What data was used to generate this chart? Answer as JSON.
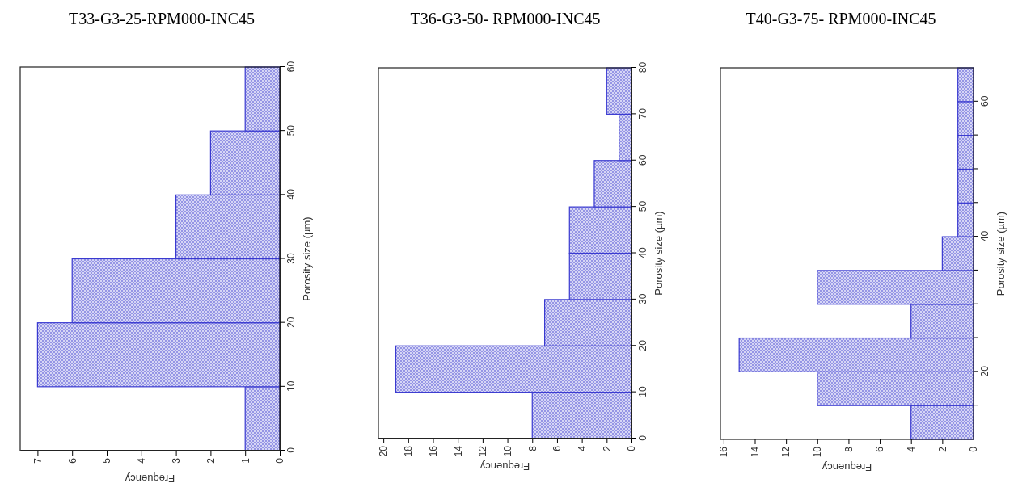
{
  "chart_data": [
    {
      "type": "histogram",
      "title": "T33-G3-25-RPM000-INC45",
      "xlabel": "Frequency",
      "ylabel": "Porosity size (µm)",
      "orientation": "horizontal",
      "color": "#3a3ad0",
      "bins": [
        0,
        10,
        20,
        30,
        40,
        50,
        60
      ],
      "values": [
        1,
        7,
        6,
        3,
        2,
        1
      ],
      "xlim": [
        7.5,
        0
      ],
      "xticks": [
        7,
        6,
        5,
        4,
        3,
        2,
        1,
        0
      ],
      "ylim": [
        0,
        60
      ],
      "yticks": [
        0,
        10,
        20,
        30,
        40,
        50,
        60
      ]
    },
    {
      "type": "histogram",
      "title": "T36-G3-50- RPM000-INC45",
      "xlabel": "Frequency",
      "ylabel": "Porosity size (µm)",
      "orientation": "horizontal",
      "color": "#3a3ad0",
      "bins": [
        0,
        10,
        20,
        30,
        40,
        50,
        60,
        70,
        80
      ],
      "values": [
        8,
        19,
        7,
        5,
        5,
        3,
        1,
        2
      ],
      "xlim": [
        20.4,
        0
      ],
      "xticks": [
        20,
        18,
        16,
        14,
        12,
        10,
        8,
        6,
        4,
        2,
        0
      ],
      "ylim": [
        0,
        80
      ],
      "yticks": [
        0,
        10,
        20,
        30,
        40,
        50,
        60,
        70,
        80
      ]
    },
    {
      "type": "histogram",
      "title": "T40-G3-75- RPM000-INC45",
      "xlabel": "Frequency",
      "ylabel": "Porosity size (µm)",
      "orientation": "horizontal",
      "color": "#3a3ad0",
      "bins": [
        10,
        15,
        20,
        25,
        30,
        35,
        40,
        45,
        50,
        55,
        60,
        65
      ],
      "values": [
        4,
        10,
        15,
        4,
        10,
        2,
        1,
        1,
        1,
        1,
        1
      ],
      "xlim": [
        16.2,
        0
      ],
      "xticks": [
        16,
        14,
        12,
        10,
        8,
        6,
        4,
        2,
        0
      ],
      "ylim": [
        10,
        65
      ],
      "yticks": [
        {
          "value": 15,
          "label": null
        },
        20,
        {
          "value": 25,
          "label": null
        },
        {
          "value": 30,
          "label": null
        },
        {
          "value": 35,
          "label": null
        },
        40,
        {
          "value": 45,
          "label": null
        },
        {
          "value": 50,
          "label": null
        },
        {
          "value": 55,
          "label": null
        },
        60
      ]
    }
  ]
}
